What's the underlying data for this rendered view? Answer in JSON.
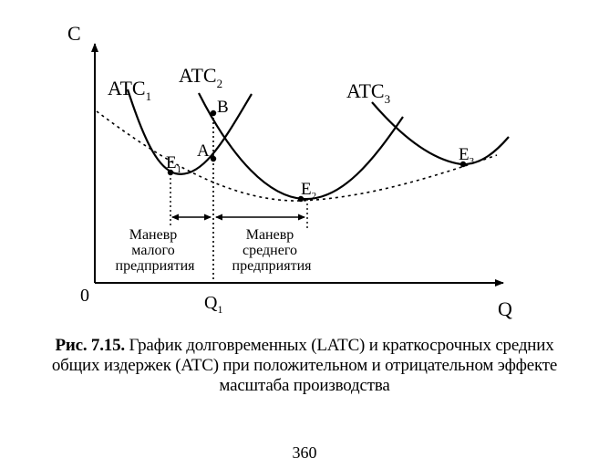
{
  "figure": {
    "axis_y_label": "C",
    "axis_x_label": "Q",
    "origin_label": "0",
    "q1_label_main": "Q",
    "q1_label_sub": "1",
    "curves": [
      {
        "name": "ATC",
        "sub": "1"
      },
      {
        "name": "ATC",
        "sub": "2"
      },
      {
        "name": "ATC",
        "sub": "3"
      }
    ],
    "points": {
      "e1": {
        "main": "E",
        "sub": "1"
      },
      "e2": {
        "main": "E",
        "sub": "2"
      },
      "e3": {
        "main": "E",
        "sub": "3"
      },
      "a": "A",
      "b": "B"
    },
    "small_maneuver": [
      "Маневр",
      "малого",
      "предприятия"
    ],
    "medium_maneuver": [
      "Маневр",
      "среднего",
      "предприятия"
    ]
  },
  "caption": {
    "number": "Рис. 7.15.",
    "lines": [
      "График долговременных (LATC) и краткосрочных средних",
      "общих издержек (ATC) при положительном и отрицательном эффекте",
      "масштаба производства"
    ]
  },
  "page_number": "360"
}
